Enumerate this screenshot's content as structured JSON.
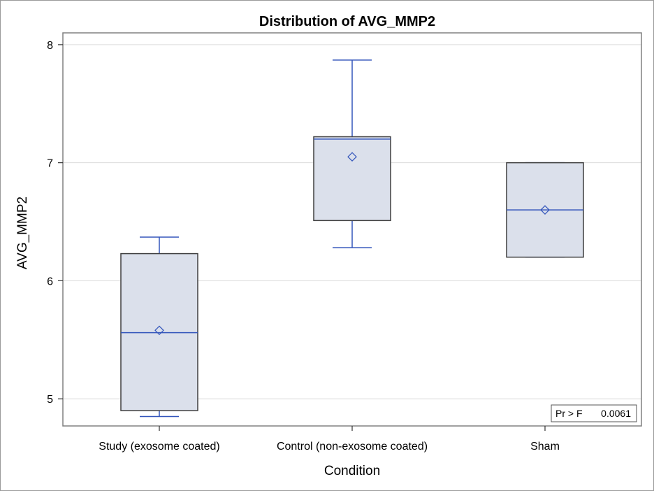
{
  "chart_data": {
    "type": "box",
    "title": "Distribution of AVG_MMP2",
    "xlabel": "Condition",
    "ylabel": "AVG_MMP2",
    "ylim": [
      4.77,
      8.1
    ],
    "yticks": [
      5,
      6,
      7,
      8
    ],
    "grid": true,
    "categories": [
      "Study (exosome coated)",
      "Control (non-exosome coated)",
      "Sham"
    ],
    "boxes": [
      {
        "category": "Study (exosome coated)",
        "min": 4.85,
        "q1": 4.9,
        "median": 5.56,
        "q3": 6.23,
        "max": 6.37,
        "mean": 5.58
      },
      {
        "category": "Control (non-exosome coated)",
        "min": 6.28,
        "q1": 6.51,
        "median": 7.2,
        "q3": 7.22,
        "max": 7.87,
        "mean": 7.05
      },
      {
        "category": "Sham",
        "min": 6.2,
        "q1": 6.2,
        "median": 6.6,
        "q3": 7.0,
        "max": 7.0,
        "mean": 6.6
      }
    ],
    "inset": {
      "label": "Pr > F",
      "value": "0.0061",
      "position": "bottom-right"
    }
  },
  "colors": {
    "box_fill": "#dbe0eb",
    "box_edge": "#3f3f3f",
    "median_whisker": "#3355bb",
    "grid": "#dcdcdc",
    "frame": "#808080"
  }
}
